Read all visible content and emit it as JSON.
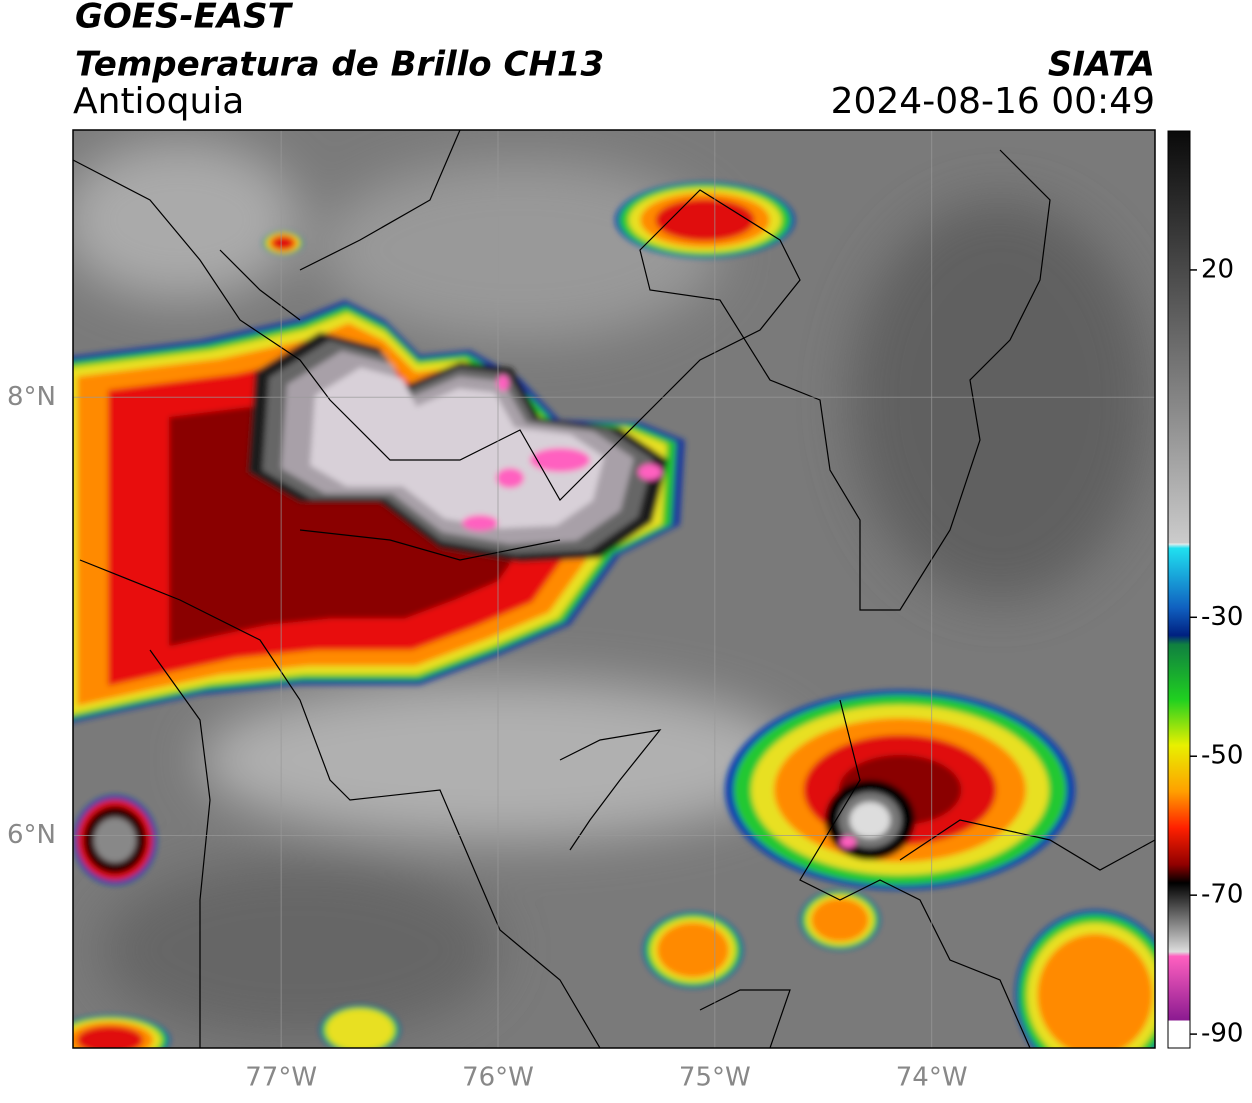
{
  "header": {
    "title": "GOES-EAST",
    "subtitle": "Temperatura de Brillo CH13",
    "region": "Antioquia",
    "source": "SIATA",
    "datetime": "2024-08-16 00:49"
  },
  "map": {
    "xlim": [
      -77.96,
      -72.97
    ],
    "ylim": [
      5.03,
      9.22
    ],
    "xticks": [
      {
        "value": -77,
        "label": "77°W"
      },
      {
        "value": -76,
        "label": "76°W"
      },
      {
        "value": -75,
        "label": "75°W"
      },
      {
        "value": -74,
        "label": "74°W"
      }
    ],
    "yticks": [
      {
        "value": 8,
        "label": "8°N"
      },
      {
        "value": 6,
        "label": "6°N"
      }
    ],
    "grid": true
  },
  "colorbar": {
    "ylim": [
      -92,
      40
    ],
    "yticks": [
      20,
      -30,
      -50,
      -70,
      -90
    ]
  }
}
